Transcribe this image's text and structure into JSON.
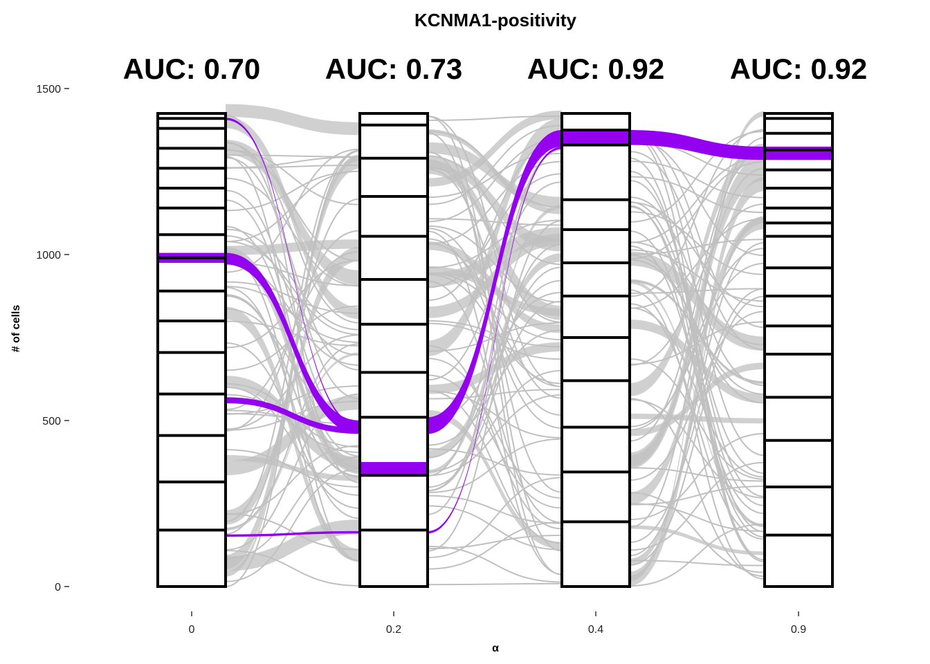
{
  "chart_data": {
    "type": "alluvial",
    "title": "KCNMA1-positivity",
    "xlabel": "α",
    "ylabel": "# of cells",
    "ylim": [
      0,
      1500
    ],
    "y_ticks": [
      0,
      500,
      1000,
      1500
    ],
    "stages": [
      "0",
      "0.2",
      "0.4",
      "0.9"
    ],
    "auc_labels": [
      "AUC: 0.70",
      "AUC: 0.73",
      "AUC: 0.92",
      "AUC: 0.92"
    ],
    "total_cells": 1425,
    "highlight_color": "#9400f0",
    "flow_color": "#c0c0c0",
    "box_color": "#000000",
    "stratum_boundaries": [
      [
        0,
        170,
        315,
        455,
        580,
        705,
        800,
        890,
        990,
        1060,
        1140,
        1200,
        1260,
        1320,
        1380,
        1410,
        1425
      ],
      [
        0,
        170,
        335,
        510,
        645,
        790,
        925,
        1055,
        1175,
        1290,
        1390,
        1425
      ],
      [
        0,
        195,
        345,
        480,
        620,
        750,
        875,
        975,
        1075,
        1165,
        1330,
        1375,
        1425
      ],
      [
        0,
        155,
        300,
        440,
        570,
        700,
        785,
        875,
        960,
        1055,
        1095,
        1140,
        1200,
        1255,
        1315,
        1365,
        1410,
        1425
      ]
    ],
    "highlight_strata": [
      {
        "stage": "0",
        "range": [
          975,
          1005
        ]
      },
      {
        "stage": "0.2",
        "range": [
          335,
          375
        ]
      },
      {
        "stage": "0.4",
        "range": [
          1330,
          1375
        ]
      },
      {
        "stage": "0.9",
        "range": [
          1285,
          1325
        ]
      }
    ],
    "highlight_flows": [
      {
        "from_stage": "0",
        "to_stage": "0.2",
        "from": [
          970,
          1005
        ],
        "to": [
          460,
          500
        ]
      },
      {
        "from_stage": "0",
        "to_stage": "0.2",
        "from": [
          552,
          570
        ],
        "to": [
          460,
          478
        ]
      },
      {
        "from_stage": "0",
        "to_stage": "0.2",
        "from": [
          1405,
          1412
        ],
        "to": [
          480,
          487
        ]
      },
      {
        "from_stage": "0",
        "to_stage": "0.2",
        "from": [
          150,
          157
        ],
        "to": [
          160,
          167
        ]
      },
      {
        "from_stage": "0.2",
        "to_stage": "0.4",
        "from": [
          460,
          510
        ],
        "to": [
          1325,
          1375
        ]
      },
      {
        "from_stage": "0.2",
        "to_stage": "0.4",
        "from": [
          160,
          167
        ],
        "to": [
          1318,
          1325
        ]
      },
      {
        "from_stage": "0.4",
        "to_stage": "0.9",
        "from": [
          1330,
          1375
        ],
        "to": [
          1285,
          1325
        ]
      }
    ]
  }
}
